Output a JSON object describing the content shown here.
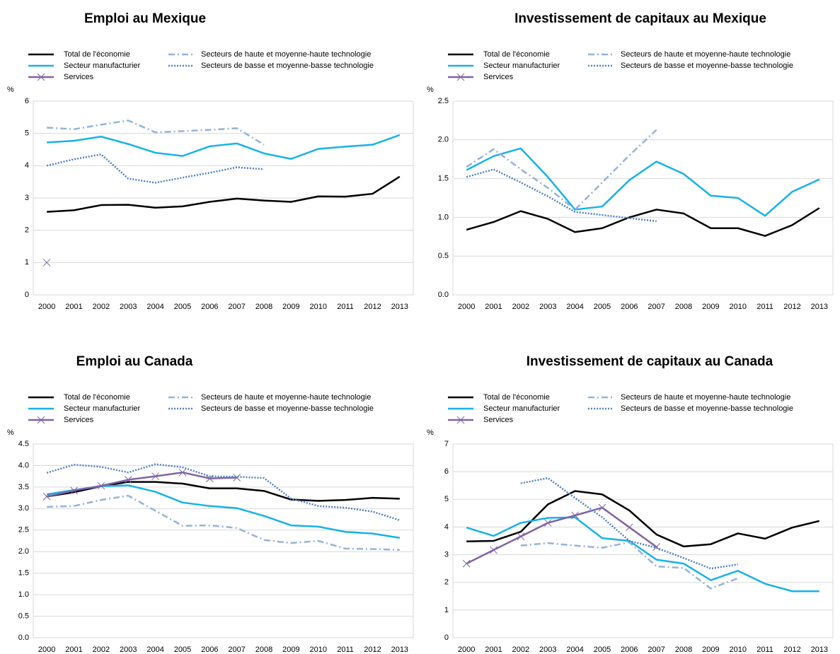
{
  "chart_data": [
    {
      "type": "line",
      "title": "Emploi au Mexique",
      "y_label": "%",
      "categories": [
        "2000",
        "2001",
        "2002",
        "2003",
        "2004",
        "2005",
        "2006",
        "2007",
        "2008",
        "2009",
        "2010",
        "2011",
        "2012",
        "2013"
      ],
      "ylim": [
        0,
        6
      ],
      "yticks": [
        0,
        1,
        2,
        3,
        4,
        5,
        6
      ],
      "series": [
        {
          "name": "Total de l'économie",
          "color": "#000000",
          "style": "solid",
          "values": [
            2.57,
            2.62,
            2.78,
            2.79,
            2.7,
            2.74,
            2.88,
            2.98,
            2.92,
            2.88,
            3.05,
            3.04,
            3.13,
            3.66
          ]
        },
        {
          "name": "Secteur manufacturier",
          "color": "#17b2e8",
          "style": "solid",
          "values": [
            4.72,
            4.77,
            4.9,
            4.67,
            4.4,
            4.3,
            4.6,
            4.69,
            4.38,
            4.21,
            4.52,
            4.59,
            4.65,
            4.95
          ]
        },
        {
          "name": "Services",
          "color": "#8064a2",
          "style": "solid",
          "marker": "x",
          "values": [
            1.0,
            null,
            null,
            null,
            null,
            null,
            null,
            null,
            null,
            null,
            null,
            null,
            null,
            null
          ]
        },
        {
          "name": "Secteurs de haute et moyenne-haute technologie",
          "color": "#95b3d7",
          "style": "dashdot",
          "values": [
            5.18,
            5.13,
            5.27,
            5.4,
            5.03,
            5.07,
            5.11,
            5.16,
            4.65,
            null,
            null,
            null,
            null,
            null
          ]
        },
        {
          "name": "Secteurs de basse et moyenne-basse technologie",
          "color": "#4f81bd",
          "style": "dotted",
          "values": [
            4.0,
            4.2,
            4.35,
            3.6,
            3.47,
            3.63,
            3.78,
            3.95,
            3.89,
            null,
            null,
            null,
            null,
            null
          ]
        }
      ]
    },
    {
      "type": "line",
      "title": "Investissement de capitaux au Mexique",
      "y_label": "%",
      "categories": [
        "2000",
        "2001",
        "2002",
        "2003",
        "2004",
        "2005",
        "2006",
        "2007",
        "2008",
        "2009",
        "2010",
        "2011",
        "2012",
        "2013"
      ],
      "ylim": [
        0,
        2.5
      ],
      "yticks": [
        {
          "value": 0,
          "label": "0.0"
        },
        0.5,
        {
          "value": 1,
          "label": "1.0"
        },
        1.5,
        {
          "value": 2,
          "label": "2.0"
        },
        2.5
      ],
      "series": [
        {
          "name": "Total de l'économie",
          "color": "#000000",
          "style": "solid",
          "values": [
            0.84,
            0.94,
            1.08,
            0.98,
            0.81,
            0.86,
            1.0,
            1.1,
            1.05,
            0.86,
            0.86,
            0.76,
            0.9,
            1.12
          ]
        },
        {
          "name": "Secteur manufacturier",
          "color": "#17b2e8",
          "style": "solid",
          "values": [
            1.61,
            1.79,
            1.89,
            1.52,
            1.1,
            1.14,
            1.48,
            1.72,
            1.56,
            1.28,
            1.25,
            1.02,
            1.33,
            1.49
          ]
        },
        {
          "name": "Services",
          "color": "#8064a2",
          "style": "solid",
          "marker": "x",
          "values": [
            null,
            null,
            null,
            null,
            null,
            null,
            null,
            null,
            null,
            null,
            null,
            null,
            null,
            null
          ]
        },
        {
          "name": "Secteurs de haute et moyenne-haute technologie",
          "color": "#95b3d7",
          "style": "dashdot",
          "values": [
            1.65,
            1.88,
            1.62,
            1.38,
            1.1,
            1.45,
            1.8,
            2.13,
            null,
            null,
            null,
            null,
            null,
            null
          ]
        },
        {
          "name": "Secteurs de basse et moyenne-basse technologie",
          "color": "#4f81bd",
          "style": "dotted",
          "values": [
            1.52,
            1.62,
            1.45,
            1.27,
            1.07,
            1.03,
            0.99,
            0.95,
            null,
            null,
            null,
            null,
            null,
            null
          ]
        }
      ]
    },
    {
      "type": "line",
      "title": "Emploi au Canada",
      "y_label": "%",
      "categories": [
        "2000",
        "2001",
        "2002",
        "2003",
        "2004",
        "2005",
        "2006",
        "2007",
        "2008",
        "2009",
        "2010",
        "2011",
        "2012",
        "2013"
      ],
      "ylim": [
        0,
        4.5
      ],
      "yticks": [
        {
          "value": 0,
          "label": "0.0"
        },
        0.5,
        {
          "value": 1,
          "label": "1.0"
        },
        1.5,
        {
          "value": 2,
          "label": "2.0"
        },
        2.5,
        {
          "value": 3,
          "label": "3.0"
        },
        3.5,
        {
          "value": 4,
          "label": "4.0"
        },
        4.5
      ],
      "series": [
        {
          "name": "Total de l'économie",
          "color": "#000000",
          "style": "solid",
          "values": [
            3.28,
            3.38,
            3.52,
            3.62,
            3.62,
            3.58,
            3.47,
            3.47,
            3.41,
            3.21,
            3.18,
            3.2,
            3.25,
            3.23
          ]
        },
        {
          "name": "Secteur manufacturier",
          "color": "#17b2e8",
          "style": "solid",
          "values": [
            3.33,
            3.43,
            3.52,
            3.54,
            3.39,
            3.14,
            3.06,
            3.01,
            2.83,
            2.61,
            2.58,
            2.46,
            2.42,
            2.32
          ]
        },
        {
          "name": "Services",
          "color": "#8064a2",
          "style": "solid",
          "marker": "x",
          "values": [
            3.28,
            3.42,
            3.53,
            3.67,
            3.75,
            3.84,
            3.7,
            3.72,
            null,
            null,
            null,
            null,
            null,
            null
          ]
        },
        {
          "name": "Secteurs de haute et moyenne-haute technologie",
          "color": "#95b3d7",
          "style": "dashdot",
          "values": [
            3.04,
            3.06,
            3.2,
            3.3,
            2.95,
            2.6,
            2.61,
            2.55,
            2.27,
            2.2,
            2.25,
            2.07,
            2.06,
            2.04
          ]
        },
        {
          "name": "Secteurs de basse et moyenne-basse technologie",
          "color": "#4f81bd",
          "style": "dotted",
          "values": [
            3.83,
            4.02,
            3.97,
            3.84,
            4.03,
            3.96,
            3.75,
            3.74,
            3.71,
            3.23,
            3.06,
            3.02,
            2.93,
            2.73
          ]
        }
      ]
    },
    {
      "type": "line",
      "title": "Investissement de capitaux au Canada",
      "y_label": "%",
      "categories": [
        "2000",
        "2001",
        "2002",
        "2003",
        "2004",
        "2005",
        "2006",
        "2007",
        "2008",
        "2009",
        "2010",
        "2011",
        "2012",
        "2013"
      ],
      "ylim": [
        0,
        7
      ],
      "yticks": [
        0,
        1,
        2,
        3,
        4,
        5,
        6,
        7
      ],
      "series": [
        {
          "name": "Total de l'économie",
          "color": "#000000",
          "style": "solid",
          "values": [
            3.48,
            3.5,
            3.83,
            4.82,
            5.3,
            5.18,
            4.6,
            3.73,
            3.3,
            3.38,
            3.77,
            3.58,
            3.98,
            4.22
          ]
        },
        {
          "name": "Secteur manufacturier",
          "color": "#17b2e8",
          "style": "solid",
          "values": [
            3.98,
            3.68,
            4.15,
            4.33,
            4.35,
            3.6,
            3.5,
            2.82,
            2.68,
            2.08,
            2.42,
            1.95,
            1.68,
            1.68
          ]
        },
        {
          "name": "Services",
          "color": "#8064a2",
          "style": "solid",
          "marker": "x",
          "values": [
            2.68,
            3.17,
            3.66,
            4.15,
            4.42,
            4.7,
            3.99,
            3.28,
            null,
            null,
            null,
            null,
            null,
            null
          ]
        },
        {
          "name": "Secteurs de haute et moyenne-haute technologie",
          "color": "#95b3d7",
          "style": "dashdot",
          "values": [
            null,
            null,
            3.33,
            3.42,
            3.33,
            3.25,
            3.45,
            2.58,
            2.52,
            1.78,
            2.15,
            null,
            null,
            null
          ]
        },
        {
          "name": "Secteurs de basse et moyenne-basse technologie",
          "color": "#4f81bd",
          "style": "dotted",
          "values": [
            null,
            null,
            5.58,
            5.77,
            5.05,
            4.35,
            3.5,
            3.25,
            2.88,
            2.5,
            2.65,
            null,
            null,
            null
          ]
        }
      ]
    }
  ]
}
